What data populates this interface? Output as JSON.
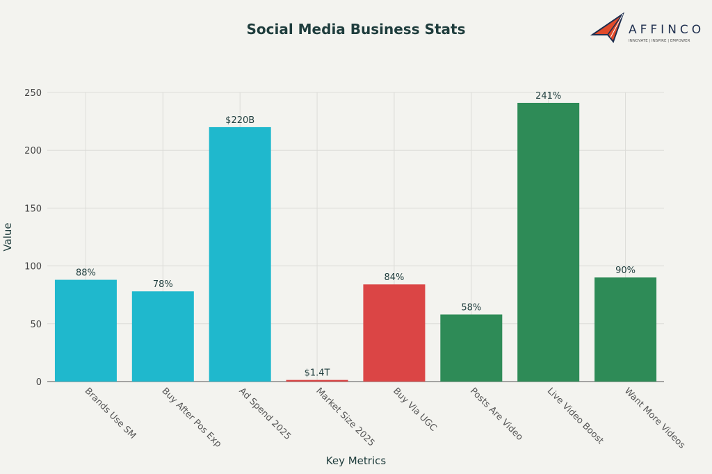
{
  "logo": {
    "name": "AFFINCO",
    "tagline": "INNOVATE | INSPIRE | EMPOWER"
  },
  "chart_data": {
    "type": "bar",
    "title": "Social Media Business Stats",
    "xlabel": "Key Metrics",
    "ylabel": "Value",
    "ylim": [
      0,
      250
    ],
    "yticks": [
      0,
      50,
      100,
      150,
      200,
      250
    ],
    "grid": true,
    "categories": [
      "Brands Use SM",
      "Buy After Pos Exp",
      "Ad Spend 2025",
      "Market Size 2025",
      "Buy Via UGC",
      "Posts Are Video",
      "Live Video Boost",
      "Want More Videos"
    ],
    "values": [
      88,
      78,
      220,
      1.4,
      84,
      58,
      241,
      90
    ],
    "labels": [
      "88%",
      "78%",
      "$220B",
      "$1.4T",
      "84%",
      "58%",
      "241%",
      "90%"
    ],
    "colors": [
      "#1fb8cd",
      "#1fb8cd",
      "#1fb8cd",
      "#db4545",
      "#db4545",
      "#2e8b57",
      "#2e8b57",
      "#2e8b57"
    ]
  }
}
